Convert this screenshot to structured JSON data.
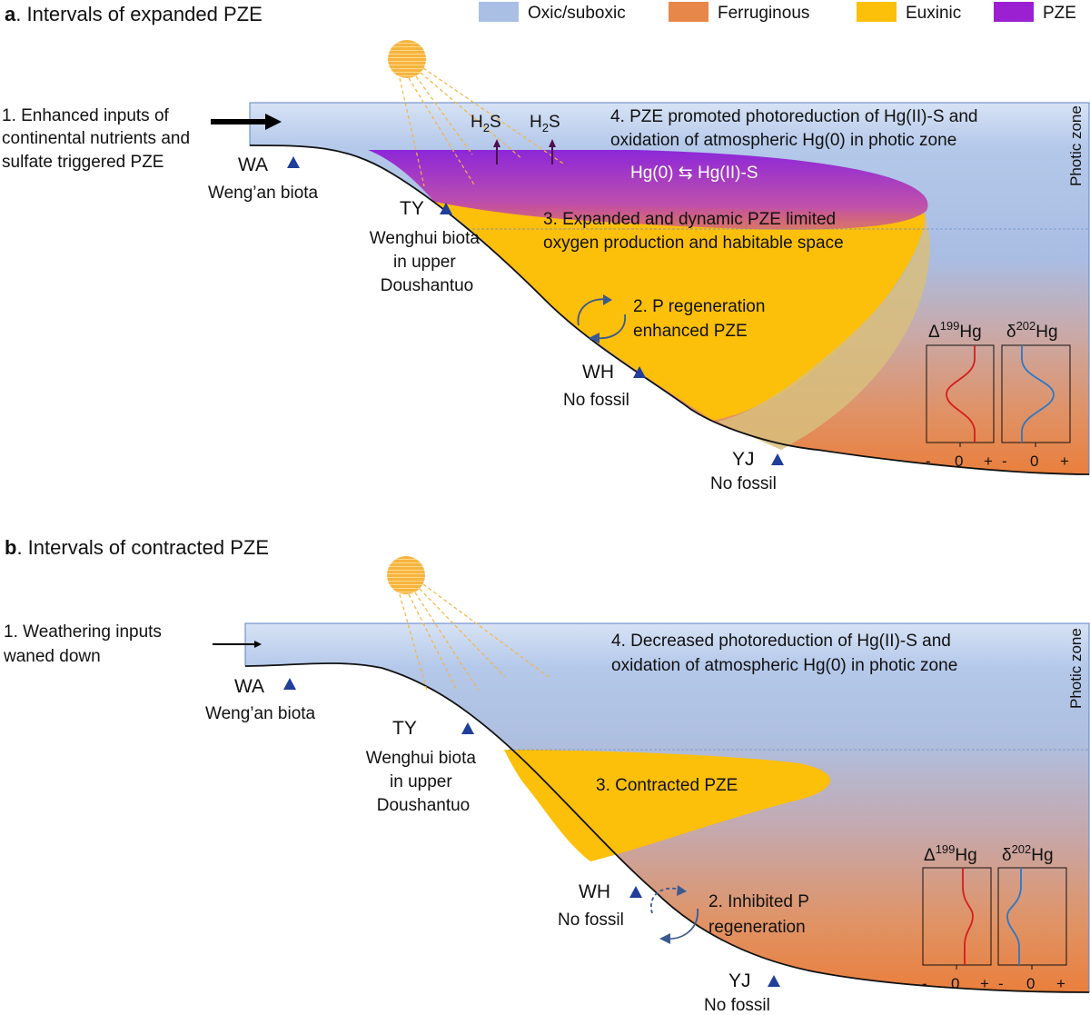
{
  "legend": [
    {
      "label": "Oxic/suboxic",
      "color": "#aabfe4"
    },
    {
      "label": "Ferruginous",
      "color": "#e8874a"
    },
    {
      "label": "Euxinic",
      "color": "#fcbf0a"
    },
    {
      "label": "PZE",
      "color": "#9a20d2"
    }
  ],
  "panel_a": {
    "letter": "a",
    "title": ". Intervals of expanded PZE",
    "step1": [
      "1. Enhanced inputs of",
      "continental nutrients and",
      "sulfate triggered PZE"
    ],
    "h2s_main": "H",
    "h2s_sub": "2",
    "h2s_end": "S",
    "step4": [
      "4. PZE promoted photoreduction of Hg(II)-S and",
      "oxidation of atmospheric Hg(0) in photic zone"
    ],
    "hg_eq": "Hg(0) ⇆ Hg(II)-S",
    "step3": [
      "3. Expanded and dynamic PZE limited",
      "oxygen production and habitable space"
    ],
    "step2": [
      "2. P regeneration",
      "enhanced PZE"
    ],
    "photic": "Photic zone",
    "sites": {
      "wa": {
        "code": "WA",
        "label": [
          "Weng’an biota"
        ]
      },
      "ty": {
        "code": "TY",
        "label": [
          "Wenghui biota",
          "in upper",
          "Doushantuo"
        ]
      },
      "wh": {
        "code": "WH",
        "label": [
          "No fossil"
        ]
      },
      "yj": {
        "code": "YJ",
        "label": [
          "No fossil"
        ]
      }
    },
    "d199": {
      "sym": "Δ",
      "mass": "199",
      "el": "Hg"
    },
    "d202": {
      "sym": "δ",
      "mass": "202",
      "el": "Hg"
    },
    "axis": {
      "minus": "-",
      "zero": "0",
      "plus": "+"
    }
  },
  "panel_b": {
    "letter": "b",
    "title": ". Intervals of contracted PZE",
    "step1": [
      "1. Weathering inputs",
      "waned down"
    ],
    "step4": [
      "4. Decreased photoreduction of Hg(II)-S and",
      "oxidation of atmospheric Hg(0) in photic zone"
    ],
    "step3": "3. Contracted PZE",
    "step2": [
      "2. Inhibited P",
      "regeneration"
    ],
    "photic": "Photic zone",
    "sites": {
      "wa": {
        "code": "WA",
        "label": [
          "Weng’an biota"
        ]
      },
      "ty": {
        "code": "TY",
        "label": [
          "Wenghui biota",
          "in upper",
          "Doushantuo"
        ]
      },
      "wh": {
        "code": "WH",
        "label": [
          "No fossil"
        ]
      },
      "yj": {
        "code": "YJ",
        "label": [
          "No fossil"
        ]
      }
    },
    "d199": {
      "sym": "Δ",
      "mass": "199",
      "el": "Hg"
    },
    "d202": {
      "sym": "δ",
      "mass": "202",
      "el": "Hg"
    },
    "axis": {
      "minus": "-",
      "zero": "0",
      "plus": "+"
    }
  }
}
